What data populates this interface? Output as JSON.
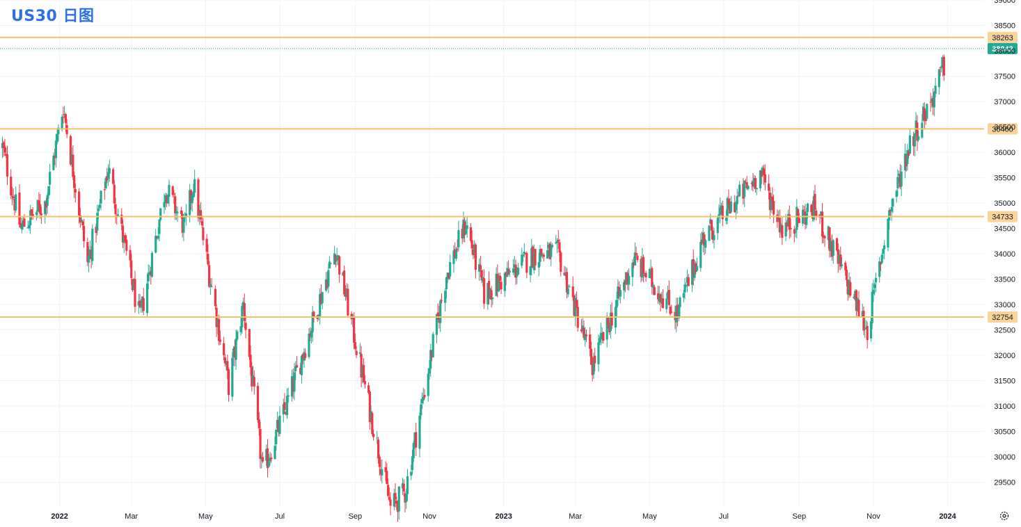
{
  "title": "US30 日图",
  "colors": {
    "up": "#22ab94",
    "down": "#f23645",
    "level": "#f5c26b",
    "level_label_bg": "#fbd49a",
    "last_price_bg": "#22ab94",
    "grid": "#f0f3fa",
    "axis_text": "#131722",
    "title": "#2f6fe4"
  },
  "icons": {
    "settings": "gear-icon"
  },
  "chart_data": {
    "type": "candlestick",
    "symbol": "US30",
    "timeframe": "daily",
    "y_axis": {
      "ticks": [
        29500,
        30000,
        30500,
        31000,
        31500,
        32000,
        32500,
        33000,
        33500,
        34000,
        34500,
        35000,
        35500,
        36000,
        36500,
        37000,
        37500,
        38000,
        38500,
        39000
      ],
      "range": [
        29000,
        39000
      ]
    },
    "x_axis": {
      "ticks": [
        {
          "label": "2022",
          "date": "2022-01-01"
        },
        {
          "label": "Mar",
          "date": "2022-03-01"
        },
        {
          "label": "May",
          "date": "2022-05-01"
        },
        {
          "label": "Jul",
          "date": "2022-07-01"
        },
        {
          "label": "Sep",
          "date": "2022-09-01"
        },
        {
          "label": "Nov",
          "date": "2022-11-01"
        },
        {
          "label": "2023",
          "date": "2023-01-01"
        },
        {
          "label": "Mar",
          "date": "2023-03-01"
        },
        {
          "label": "May",
          "date": "2023-05-01"
        },
        {
          "label": "Jul",
          "date": "2023-07-01"
        },
        {
          "label": "Sep",
          "date": "2023-09-01"
        },
        {
          "label": "Nov",
          "date": "2023-11-01"
        },
        {
          "label": "2024",
          "date": "2024-01-01"
        }
      ],
      "range": [
        "2021-11-13",
        "2024-01-31"
      ]
    },
    "grid": true,
    "horizontal_levels": [
      {
        "value": 38263,
        "label": "38263"
      },
      {
        "value": 36460,
        "label": "36460"
      },
      {
        "value": 34733,
        "label": "34733"
      },
      {
        "value": 32754,
        "label": "32754"
      }
    ],
    "last_price": {
      "value": 38042,
      "label": "38042"
    },
    "price_path": [
      [
        "2021-11-15",
        36100
      ],
      [
        "2021-11-30",
        34500
      ],
      [
        "2021-12-20",
        35000
      ],
      [
        "2022-01-04",
        36900
      ],
      [
        "2022-01-24",
        33800
      ],
      [
        "2022-02-10",
        35700
      ],
      [
        "2022-03-08",
        32700
      ],
      [
        "2022-03-29",
        35300
      ],
      [
        "2022-04-14",
        34500
      ],
      [
        "2022-04-21",
        35400
      ],
      [
        "2022-05-20",
        31400
      ],
      [
        "2022-06-01",
        33000
      ],
      [
        "2022-06-17",
        29700
      ],
      [
        "2022-07-05",
        30900
      ],
      [
        "2022-08-16",
        34100
      ],
      [
        "2022-09-30",
        29000
      ],
      [
        "2022-10-12",
        29300
      ],
      [
        "2022-11-15",
        33600
      ],
      [
        "2022-12-01",
        34600
      ],
      [
        "2022-12-16",
        33200
      ],
      [
        "2023-01-27",
        34000
      ],
      [
        "2023-02-15",
        34000
      ],
      [
        "2023-03-15",
        31800
      ],
      [
        "2023-04-18",
        33900
      ],
      [
        "2023-05-24",
        32800
      ],
      [
        "2023-06-14",
        34300
      ],
      [
        "2023-07-31",
        35600
      ],
      [
        "2023-08-18",
        34500
      ],
      [
        "2023-09-14",
        34900
      ],
      [
        "2023-10-27",
        32500
      ],
      [
        "2023-11-14",
        34800
      ],
      [
        "2023-12-01",
        36200
      ],
      [
        "2023-12-20",
        37100
      ],
      [
        "2023-12-29",
        37700
      ]
    ]
  }
}
